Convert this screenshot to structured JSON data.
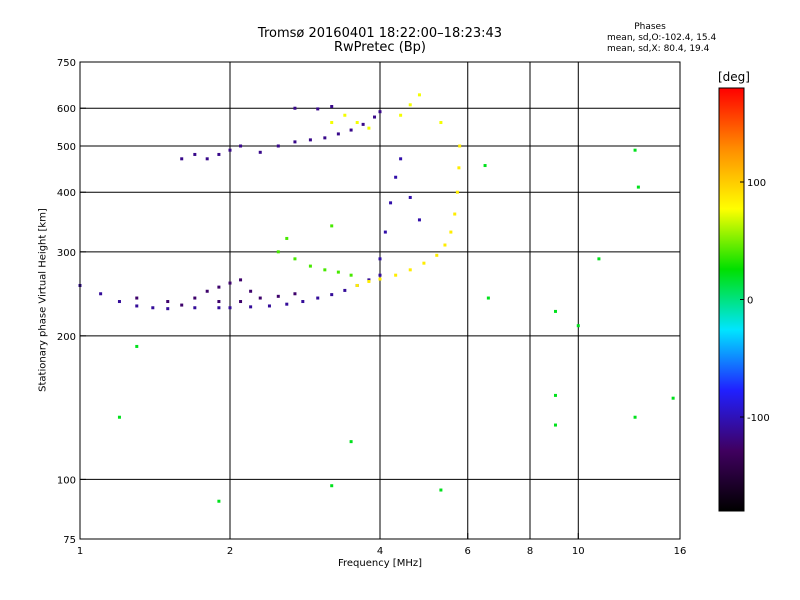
{
  "header": {
    "title_line1": "Tromsø 20160401 18:22:00–18:23:43",
    "title_line2": "RwPretec (Bp)",
    "phases_heading": "Phases",
    "stat_o": "mean, sd,O:-102.4, 15.4",
    "stat_x": "mean, sd,X:  80.4, 19.4"
  },
  "colorbar": {
    "unit": "[deg]",
    "range": [
      -180,
      180
    ],
    "ticks": [
      100,
      0,
      -100
    ],
    "tick_labels": [
      "100",
      "0",
      "-100"
    ],
    "palette": [
      "#000000",
      "#400060",
      "#2020ff",
      "#00e5ff",
      "#00e000",
      "#ffff00",
      "#ff8c00",
      "#ff0000"
    ]
  },
  "chart_data": {
    "type": "scatter",
    "title": "Tromsø 20160401 18:22:00–18:23:43",
    "subtitle": "RwPretec (Bp)",
    "xlabel": "Frequency [MHz]",
    "ylabel": "Stationary phase Virtual Height [km]",
    "x_scale": "log",
    "y_scale": "log",
    "xlim": [
      1,
      16
    ],
    "ylim": [
      75,
      750
    ],
    "xticks": [
      1,
      2,
      4,
      6,
      8,
      10,
      16
    ],
    "xtick_labels": [
      "1",
      "2",
      "4",
      "6",
      "8",
      "10",
      "16"
    ],
    "x_gridlines": [
      2,
      4,
      6,
      8,
      10
    ],
    "yticks": [
      75,
      100,
      200,
      300,
      400,
      500,
      600,
      750
    ],
    "ytick_labels": [
      "75",
      "100",
      "200",
      "300",
      "400",
      "500",
      "600",
      "750"
    ],
    "y_gridlines": [
      100,
      200,
      300,
      400,
      500,
      600
    ],
    "grid": true,
    "color_by": "phase [deg]",
    "point_groups": [
      {
        "desc": "O trace lower",
        "phase": -110,
        "points": [
          [
            1.0,
            255
          ],
          [
            1.1,
            245
          ],
          [
            1.2,
            236
          ],
          [
            1.3,
            231
          ],
          [
            1.4,
            229
          ],
          [
            1.5,
            228
          ],
          [
            1.7,
            229
          ],
          [
            1.9,
            229
          ],
          [
            2.0,
            229
          ],
          [
            2.2,
            230
          ],
          [
            2.4,
            231
          ],
          [
            2.6,
            233
          ],
          [
            2.8,
            236
          ],
          [
            3.0,
            240
          ],
          [
            3.2,
            244
          ],
          [
            3.4,
            249
          ],
          [
            3.6,
            255
          ],
          [
            3.8,
            262
          ],
          [
            4.0,
            268
          ]
        ]
      },
      {
        "desc": "O trace spread",
        "phase": -125,
        "points": [
          [
            1.3,
            240
          ],
          [
            1.5,
            236
          ],
          [
            1.7,
            240
          ],
          [
            1.8,
            248
          ],
          [
            1.9,
            253
          ],
          [
            2.0,
            258
          ],
          [
            2.1,
            262
          ],
          [
            2.2,
            248
          ],
          [
            2.3,
            240
          ],
          [
            2.5,
            242
          ],
          [
            2.7,
            245
          ],
          [
            1.6,
            232
          ],
          [
            1.9,
            236
          ],
          [
            2.1,
            236
          ]
        ]
      },
      {
        "desc": "X trace lower",
        "phase": 85,
        "points": [
          [
            3.6,
            255
          ],
          [
            3.8,
            260
          ],
          [
            4.0,
            263
          ],
          [
            4.3,
            268
          ],
          [
            4.6,
            275
          ],
          [
            4.9,
            284
          ],
          [
            5.2,
            295
          ],
          [
            5.4,
            310
          ],
          [
            5.55,
            330
          ],
          [
            5.65,
            360
          ],
          [
            5.72,
            400
          ],
          [
            5.76,
            450
          ],
          [
            5.78,
            500
          ]
        ]
      },
      {
        "desc": "X cusp green",
        "phase": 40,
        "points": [
          [
            2.5,
            300
          ],
          [
            2.7,
            290
          ],
          [
            2.9,
            280
          ],
          [
            3.1,
            275
          ],
          [
            3.3,
            272
          ],
          [
            3.5,
            268
          ],
          [
            2.6,
            320
          ],
          [
            3.2,
            340
          ]
        ]
      },
      {
        "desc": "O cusp rising",
        "phase": -105,
        "points": [
          [
            4.0,
            290
          ],
          [
            4.1,
            330
          ],
          [
            4.2,
            380
          ],
          [
            4.3,
            430
          ],
          [
            4.4,
            470
          ],
          [
            4.6,
            390
          ],
          [
            4.8,
            350
          ]
        ]
      },
      {
        "desc": "O upper",
        "phase": -115,
        "points": [
          [
            1.6,
            470
          ],
          [
            1.7,
            480
          ],
          [
            1.8,
            470
          ],
          [
            1.9,
            480
          ],
          [
            2.0,
            490
          ],
          [
            2.1,
            500
          ],
          [
            2.3,
            485
          ],
          [
            2.5,
            500
          ],
          [
            2.7,
            510
          ],
          [
            2.9,
            515
          ],
          [
            3.1,
            520
          ],
          [
            3.3,
            530
          ],
          [
            3.5,
            540
          ],
          [
            3.7,
            555
          ],
          [
            3.9,
            575
          ],
          [
            4.0,
            590
          ],
          [
            2.7,
            600
          ],
          [
            3.0,
            598
          ],
          [
            3.2,
            605
          ]
        ]
      },
      {
        "desc": "X upper",
        "phase": 75,
        "points": [
          [
            3.2,
            560
          ],
          [
            3.4,
            580
          ],
          [
            3.6,
            560
          ],
          [
            3.8,
            545
          ],
          [
            4.4,
            580
          ],
          [
            4.6,
            610
          ],
          [
            4.8,
            640
          ],
          [
            5.3,
            560
          ]
        ]
      },
      {
        "desc": "Scattered",
        "phase": 20,
        "points": [
          [
            1.9,
            90
          ],
          [
            3.2,
            97
          ],
          [
            5.3,
            95
          ],
          [
            6.5,
            455
          ],
          [
            6.6,
            240
          ],
          [
            9.0,
            225
          ],
          [
            10.0,
            210
          ],
          [
            11.0,
            290
          ],
          [
            13.0,
            490
          ],
          [
            13.2,
            410
          ],
          [
            15.5,
            148
          ],
          [
            9.0,
            150
          ],
          [
            9.0,
            130
          ],
          [
            13.0,
            135
          ],
          [
            1.2,
            135
          ],
          [
            1.3,
            190
          ],
          [
            3.5,
            120
          ]
        ]
      }
    ]
  }
}
